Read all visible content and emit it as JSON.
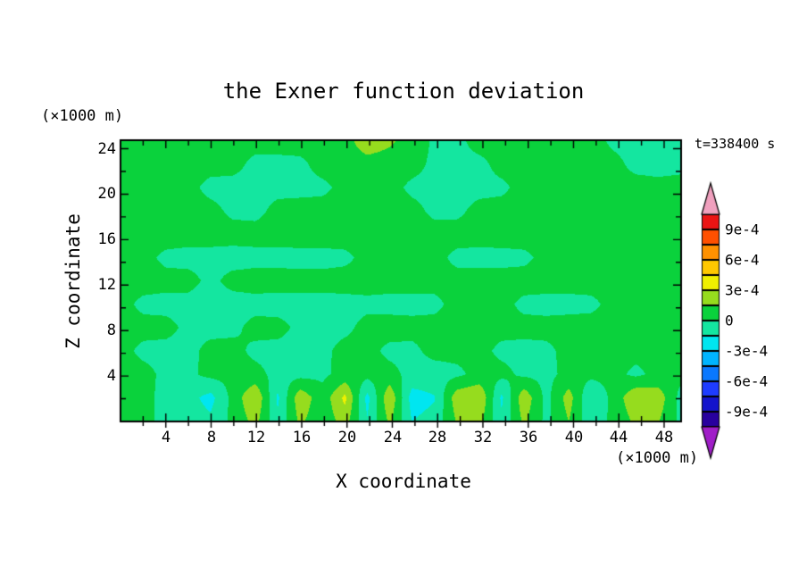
{
  "title": "the Exner function deviation",
  "time_label": "t=338400 s",
  "axes": {
    "x": {
      "label": "X coordinate",
      "unit_label": "(×1000 m)",
      "range": [
        0,
        49.5
      ],
      "tick_labels": [
        "4",
        "8",
        "12",
        "16",
        "20",
        "24",
        "28",
        "32",
        "36",
        "40",
        "44",
        "48"
      ]
    },
    "z": {
      "label": "Z coordinate",
      "unit_label": "(×1000 m)",
      "range": [
        0,
        24.75
      ],
      "tick_labels": [
        "24",
        "20",
        "16",
        "12",
        "8",
        "4"
      ]
    }
  },
  "colorbar": {
    "labels": [
      "9e-4",
      "6e-4",
      "3e-4",
      "0",
      "-3e-4",
      "-6e-4",
      "-9e-4"
    ],
    "boundary_values": [
      0.0009,
      0.0006,
      0.0003,
      0,
      -0.0003,
      -0.0006,
      -0.0009
    ],
    "cell_step": 0.00015,
    "value_min": -0.00105,
    "value_max": 0.00105,
    "cell_colors_bottom_to_top": [
      "#28009E",
      "#1414CC",
      "#1E3CFF",
      "#0A78FF",
      "#00B4FF",
      "#00E6F0",
      "#14E6A0",
      "#0AD23C",
      "#96DC1E",
      "#F0F000",
      "#FFC800",
      "#FF9100",
      "#FF5000",
      "#EB1414"
    ],
    "arrow_top_color": "#F0A0BE",
    "arrow_bottom_color": "#A01EC8"
  },
  "chart_data": {
    "type": "heatmap",
    "title": "the Exner function deviation",
    "xlabel": "X coordinate (×1000 m)",
    "ylabel": "Z coordinate (×1000 m)",
    "time": "t=338400 s",
    "x_range": [
      0,
      49.5
    ],
    "z_range": [
      0,
      24.75
    ],
    "x_ticks": [
      4,
      8,
      12,
      16,
      20,
      24,
      28,
      32,
      36,
      40,
      44,
      48
    ],
    "z_ticks": [
      4,
      8,
      12,
      16,
      20,
      24
    ],
    "contour_interval": 0.00015,
    "labeled_levels": [
      -0.0009,
      -0.0006,
      -0.0003,
      0,
      0.0003,
      0.0006,
      0.0009
    ],
    "grid_value_units": "1e-4",
    "grid_rows_top_to_bottom": [
      [
        0.6,
        0.6,
        0.6,
        0.6,
        0.6,
        0.6,
        0.6,
        0.6,
        0.6,
        0.7,
        0.8,
        2.6,
        1.8,
        0.8,
        -0.2,
        -0.4,
        0.6,
        0.6,
        0.6,
        0.6,
        0.6,
        0.6,
        -0.3,
        -0.5,
        -0.5,
        -0.4
      ],
      [
        0.6,
        0.6,
        0.6,
        0.6,
        0.5,
        0.5,
        -0.4,
        -0.4,
        -0.3,
        0.5,
        0.6,
        0.8,
        0.7,
        0.5,
        -0.3,
        -0.4,
        -0.4,
        0.5,
        0.6,
        0.6,
        0.5,
        0.5,
        0.4,
        -0.4,
        -0.5,
        -0.4
      ],
      [
        0.6,
        0.5,
        0.4,
        0.4,
        -0.4,
        -0.5,
        -0.5,
        -0.4,
        -0.4,
        -0.3,
        0.4,
        0.5,
        0.5,
        -0.3,
        -0.4,
        -0.5,
        -0.4,
        -0.3,
        0.5,
        0.6,
        0.6,
        0.6,
        0.5,
        0.5,
        0.4,
        0.5
      ],
      [
        0.6,
        0.6,
        0.5,
        0.5,
        0.4,
        -0.3,
        -0.4,
        0.4,
        0.5,
        0.5,
        0.5,
        0.6,
        0.5,
        0.4,
        -0.3,
        -0.3,
        0.4,
        0.5,
        0.6,
        0.6,
        0.6,
        0.5,
        0.5,
        0.5,
        0.5,
        0.5
      ],
      [
        0.6,
        0.6,
        0.6,
        0.5,
        0.5,
        0.5,
        0.5,
        0.5,
        0.6,
        0.6,
        0.6,
        0.6,
        0.6,
        0.5,
        0.5,
        0.5,
        0.5,
        0.6,
        0.6,
        0.6,
        0.5,
        0.5,
        0.6,
        0.6,
        0.6,
        0.6
      ],
      [
        0.5,
        0.4,
        -0.3,
        -0.4,
        -0.4,
        -0.5,
        -0.4,
        -0.4,
        -0.4,
        -0.4,
        -0.3,
        0.4,
        0.4,
        0.4,
        0.4,
        -0.3,
        -0.4,
        -0.4,
        -0.3,
        0.4,
        0.5,
        0.5,
        0.5,
        0.5,
        0.5,
        0.5
      ],
      [
        0.5,
        0.5,
        0.4,
        0.4,
        -0.3,
        0.4,
        0.5,
        0.5,
        0.4,
        0.4,
        0.5,
        0.5,
        0.5,
        0.5,
        0.4,
        0.4,
        0.5,
        0.5,
        0.5,
        0.5,
        0.5,
        0.5,
        0.5,
        0.5,
        0.5,
        0.5
      ],
      [
        0.4,
        -0.3,
        -0.4,
        -0.4,
        -0.5,
        -0.5,
        -0.4,
        -0.5,
        -0.4,
        -0.4,
        -0.4,
        -0.3,
        -0.4,
        -0.4,
        -0.3,
        0.4,
        0.4,
        0.4,
        -0.3,
        -0.4,
        -0.4,
        -0.3,
        0.4,
        0.5,
        0.5,
        0.5
      ],
      [
        0.5,
        0.4,
        0.4,
        -0.3,
        -0.4,
        -0.3,
        0.4,
        0.4,
        -0.3,
        -0.4,
        -0.3,
        0.4,
        0.5,
        0.4,
        0.4,
        0.4,
        0.5,
        0.4,
        0.4,
        0.4,
        0.5,
        0.5,
        0.4,
        0.4,
        0.5,
        0.5
      ],
      [
        0.4,
        -0.3,
        -0.4,
        -0.4,
        0.4,
        0.4,
        -0.3,
        -0.4,
        -0.4,
        -0.3,
        0.4,
        0.4,
        -0.3,
        -0.3,
        0.4,
        0.4,
        0.4,
        -0.3,
        -0.4,
        -0.3,
        0.4,
        0.4,
        0.5,
        0.4,
        0.4,
        0.4
      ],
      [
        0.4,
        0.4,
        -0.3,
        -0.3,
        0.4,
        0.4,
        0.4,
        -0.4,
        -0.5,
        -0.3,
        0.5,
        0.5,
        0.4,
        -0.4,
        -0.6,
        -0.3,
        0.4,
        0.4,
        -0.3,
        -0.4,
        0.4,
        0.4,
        0.4,
        -0.3,
        0.4,
        0.4
      ],
      [
        0.4,
        0.5,
        -0.5,
        -1.0,
        -2.0,
        0.5,
        3.0,
        -1.8,
        2.6,
        0.5,
        3.4,
        -2.0,
        2.8,
        -2.2,
        -1.6,
        2.4,
        3.0,
        -1.8,
        2.6,
        -0.5,
        2.2,
        -1.5,
        0.5,
        2.8,
        2.4,
        -0.5
      ],
      [
        0.4,
        0.4,
        -0.4,
        -0.8,
        -1.2,
        0.4,
        2.0,
        -1.2,
        1.8,
        0.4,
        2.2,
        -1.4,
        1.8,
        -1.5,
        -1.0,
        1.6,
        2.0,
        -1.2,
        1.8,
        -0.4,
        1.5,
        -1.0,
        0.4,
        1.8,
        1.6,
        -0.4
      ]
    ]
  }
}
